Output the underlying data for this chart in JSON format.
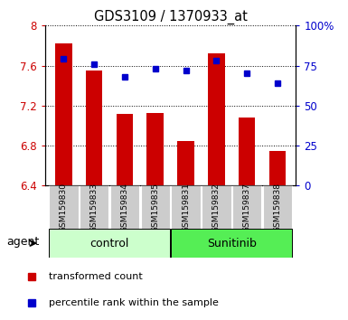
{
  "title": "GDS3109 / 1370933_at",
  "samples": [
    "GSM159830",
    "GSM159833",
    "GSM159834",
    "GSM159835",
    "GSM159831",
    "GSM159832",
    "GSM159837",
    "GSM159838"
  ],
  "transformed_count": [
    7.82,
    7.55,
    7.12,
    7.13,
    6.85,
    7.72,
    7.08,
    6.75
  ],
  "percentile_rank": [
    79,
    76,
    68,
    73,
    72,
    78,
    70,
    64
  ],
  "ylim_left": [
    6.4,
    8.0
  ],
  "ylim_right": [
    0,
    100
  ],
  "yticks_left": [
    6.4,
    6.8,
    7.2,
    7.6,
    8.0
  ],
  "yticks_right": [
    0,
    25,
    50,
    75,
    100
  ],
  "ytick_labels_left": [
    "6.4",
    "6.8",
    "7.2",
    "7.6",
    "8"
  ],
  "ytick_labels_right": [
    "0",
    "25",
    "50",
    "75",
    "100%"
  ],
  "bar_color": "#cc0000",
  "dot_color": "#0000cc",
  "bar_bottom": 6.4,
  "groups": [
    {
      "name": "control",
      "count": 4,
      "color": "#ccffcc"
    },
    {
      "name": "Sunitinib",
      "count": 4,
      "color": "#55ee55"
    }
  ],
  "agent_label": "agent",
  "legend_bar_label": "transformed count",
  "legend_dot_label": "percentile rank within the sample",
  "bar_color_legend": "#cc0000",
  "dot_color_legend": "#0000cc",
  "tick_bg_color": "#cccccc",
  "background_color": "#ffffff",
  "grid_color": "#000000",
  "spine_color": "#000000"
}
